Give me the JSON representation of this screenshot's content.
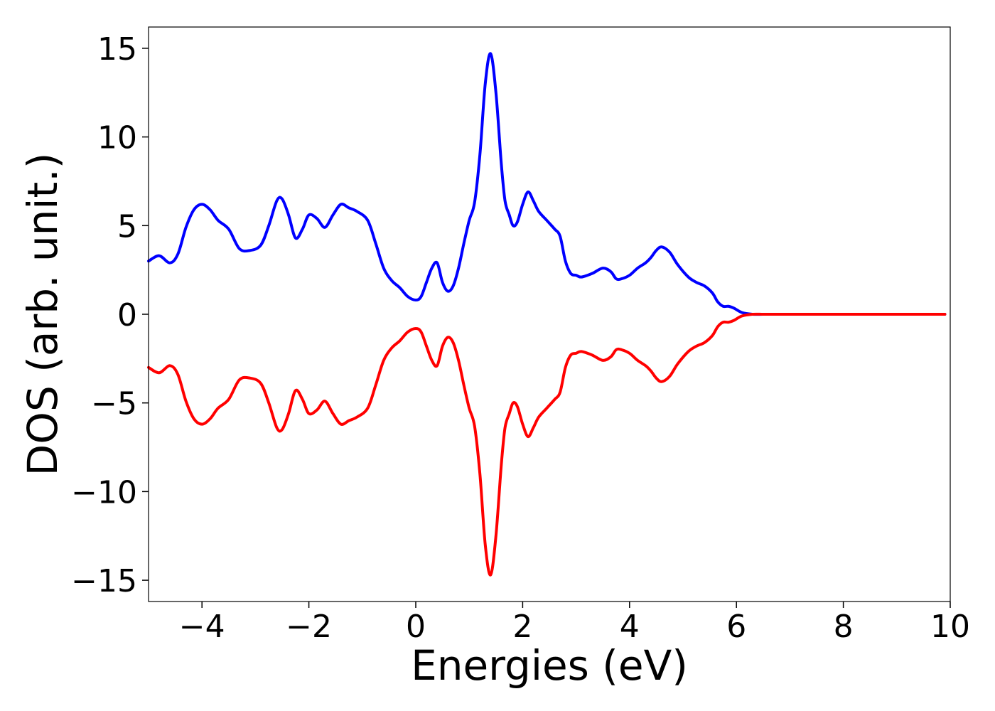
{
  "chart_data": {
    "type": "line",
    "title": "",
    "xlabel": "Energies (eV)",
    "ylabel": "DOS (arb. unit.)",
    "xlim": [
      -5,
      10
    ],
    "ylim": [
      -16.2,
      16.2
    ],
    "x_ticks": [
      -4,
      -2,
      0,
      2,
      4,
      6,
      8,
      10
    ],
    "x_tick_labels": [
      "−4",
      "−2",
      "0",
      "2",
      "4",
      "6",
      "8",
      "10"
    ],
    "y_ticks": [
      15,
      10,
      5,
      0,
      -5,
      -10,
      -15
    ],
    "y_tick_labels": [
      "15",
      "10",
      "5",
      "0",
      "−5",
      "−10",
      "−15"
    ],
    "grid": false,
    "legend": "none",
    "series": [
      {
        "color": "#0000ff",
        "x": [
          -5.0,
          -4.8,
          -4.6,
          -4.45,
          -4.3,
          -4.15,
          -4.0,
          -3.85,
          -3.7,
          -3.5,
          -3.3,
          -3.1,
          -2.9,
          -2.75,
          -2.6,
          -2.5,
          -2.38,
          -2.25,
          -2.12,
          -2.0,
          -1.85,
          -1.7,
          -1.55,
          -1.4,
          -1.25,
          -1.1,
          -0.9,
          -0.75,
          -0.6,
          -0.45,
          -0.3,
          -0.15,
          0.0,
          0.1,
          0.2,
          0.3,
          0.4,
          0.5,
          0.6,
          0.7,
          0.8,
          0.9,
          1.0,
          1.1,
          1.2,
          1.3,
          1.4,
          1.5,
          1.6,
          1.67,
          1.75,
          1.82,
          1.9,
          2.0,
          2.1,
          2.2,
          2.3,
          2.45,
          2.6,
          2.7,
          2.8,
          2.9,
          3.0,
          3.1,
          3.3,
          3.5,
          3.65,
          3.75,
          3.85,
          4.0,
          4.15,
          4.3,
          4.4,
          4.5,
          4.6,
          4.75,
          4.9,
          5.1,
          5.25,
          5.4,
          5.55,
          5.65,
          5.75,
          5.85,
          5.95,
          6.1,
          6.3,
          6.5,
          6.7,
          6.9,
          7.1,
          7.3,
          7.5,
          7.7,
          7.9,
          8.2,
          9.0,
          9.9
        ],
        "y": [
          3.0,
          3.3,
          2.9,
          3.4,
          4.9,
          5.9,
          6.2,
          5.9,
          5.3,
          4.8,
          3.7,
          3.6,
          3.9,
          5.0,
          6.4,
          6.5,
          5.6,
          4.3,
          4.8,
          5.6,
          5.4,
          4.9,
          5.6,
          6.2,
          6.0,
          5.8,
          5.3,
          4.0,
          2.6,
          1.9,
          1.5,
          1.0,
          0.8,
          1.0,
          1.8,
          2.6,
          2.9,
          1.8,
          1.3,
          1.6,
          2.6,
          4.0,
          5.3,
          6.3,
          9.0,
          13.0,
          14.7,
          12.5,
          8.5,
          6.4,
          5.6,
          5.0,
          5.2,
          6.2,
          6.9,
          6.4,
          5.8,
          5.3,
          4.8,
          4.4,
          3.0,
          2.3,
          2.2,
          2.1,
          2.3,
          2.6,
          2.4,
          2.0,
          2.0,
          2.2,
          2.6,
          2.9,
          3.2,
          3.6,
          3.8,
          3.5,
          2.8,
          2.1,
          1.8,
          1.6,
          1.2,
          0.7,
          0.45,
          0.45,
          0.35,
          0.1,
          0.0,
          0.0,
          0.0,
          0.0,
          0.0,
          0.0,
          0.0,
          0.0,
          0.0,
          0.0,
          0.0,
          0.0
        ]
      },
      {
        "color": "#ff0000",
        "x": [
          -5.0,
          -4.8,
          -4.6,
          -4.45,
          -4.3,
          -4.15,
          -4.0,
          -3.85,
          -3.7,
          -3.5,
          -3.3,
          -3.1,
          -2.9,
          -2.75,
          -2.6,
          -2.5,
          -2.38,
          -2.25,
          -2.12,
          -2.0,
          -1.85,
          -1.7,
          -1.55,
          -1.4,
          -1.25,
          -1.1,
          -0.9,
          -0.75,
          -0.6,
          -0.45,
          -0.3,
          -0.15,
          0.0,
          0.1,
          0.2,
          0.3,
          0.4,
          0.5,
          0.6,
          0.7,
          0.8,
          0.9,
          1.0,
          1.1,
          1.2,
          1.3,
          1.4,
          1.5,
          1.6,
          1.67,
          1.75,
          1.82,
          1.9,
          2.0,
          2.1,
          2.2,
          2.3,
          2.45,
          2.6,
          2.7,
          2.8,
          2.9,
          3.0,
          3.1,
          3.3,
          3.5,
          3.65,
          3.75,
          3.85,
          4.0,
          4.15,
          4.3,
          4.4,
          4.5,
          4.6,
          4.75,
          4.9,
          5.1,
          5.25,
          5.4,
          5.55,
          5.65,
          5.75,
          5.85,
          5.95,
          6.1,
          6.3,
          6.5,
          6.7,
          6.9,
          7.1,
          7.3,
          7.5,
          7.7,
          7.9,
          8.2,
          9.0,
          9.9
        ],
        "y": [
          -3.0,
          -3.3,
          -2.9,
          -3.4,
          -4.9,
          -5.9,
          -6.2,
          -5.9,
          -5.3,
          -4.8,
          -3.7,
          -3.6,
          -3.9,
          -5.0,
          -6.4,
          -6.5,
          -5.6,
          -4.3,
          -4.8,
          -5.6,
          -5.4,
          -4.9,
          -5.6,
          -6.2,
          -6.0,
          -5.8,
          -5.3,
          -4.0,
          -2.6,
          -1.9,
          -1.5,
          -1.0,
          -0.8,
          -1.0,
          -1.8,
          -2.6,
          -2.9,
          -1.8,
          -1.3,
          -1.6,
          -2.6,
          -4.0,
          -5.3,
          -6.3,
          -9.0,
          -13.0,
          -14.7,
          -12.5,
          -8.5,
          -6.4,
          -5.6,
          -5.0,
          -5.2,
          -6.2,
          -6.9,
          -6.4,
          -5.8,
          -5.3,
          -4.8,
          -4.4,
          -3.0,
          -2.3,
          -2.2,
          -2.1,
          -2.3,
          -2.6,
          -2.4,
          -2.0,
          -2.0,
          -2.2,
          -2.6,
          -2.9,
          -3.2,
          -3.6,
          -3.8,
          -3.5,
          -2.8,
          -2.1,
          -1.8,
          -1.6,
          -1.2,
          -0.7,
          -0.45,
          -0.45,
          -0.35,
          -0.1,
          0.0,
          0.0,
          0.0,
          0.0,
          0.0,
          0.0,
          0.0,
          0.0,
          0.0,
          0.0,
          0.0,
          0.0
        ]
      }
    ]
  }
}
